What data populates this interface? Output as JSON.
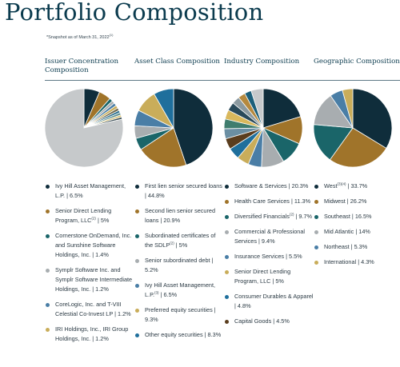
{
  "page": {
    "title": "Portfolio Composition",
    "snapshot": "*Snapshot as of March 31, 2022",
    "snapshot_sup": "(1)"
  },
  "chart_data": [
    {
      "type": "pie",
      "title": "Issuer Concentration Composition",
      "slices": [
        {
          "label": "Ivy Hill Asset Management, L.P.",
          "sup": "",
          "value": 6.5,
          "color": "#0f2d3b"
        },
        {
          "label": "Senior Direct Lending Program, LLC",
          "sup": "(2)",
          "value": 5,
          "color": "#a0742a"
        },
        {
          "label": "Cornerstone OnDemand, Inc. and Sunshine Software Holdings, Inc.",
          "sup": "",
          "value": 1.4,
          "color": "#1a6569"
        },
        {
          "label": "Symplr Software Inc. and Symplr Software Intermediate Holdings, Inc.",
          "sup": "",
          "value": 1.2,
          "color": "#a8adb0"
        },
        {
          "label": "CoreLogic, Inc. and T-VIII Celestial Co-Invest LP",
          "sup": "",
          "value": 1.2,
          "color": "#4a7ea6"
        },
        {
          "label": "IRI Holdings, Inc., IRI Group Holdings, Inc.",
          "sup": "",
          "value": 1.2,
          "color": "#c9ad5a"
        }
      ],
      "unlabeled_slices": [
        {
          "value": 1.1,
          "color": "#6f6a50"
        },
        {
          "value": 1.0,
          "color": "#2b6f8f"
        },
        {
          "value": 1.0,
          "color": "#5b8d8c"
        },
        {
          "value": 0.9,
          "color": "#d8c27a"
        },
        {
          "value": 0.9,
          "color": "#3d4f57"
        },
        {
          "value": 78.6,
          "color": "#c6c9cb"
        }
      ]
    },
    {
      "type": "pie",
      "title": "Asset Class Composition",
      "slices": [
        {
          "label": "First lien senior secured loans",
          "sup": "",
          "value": 44.8,
          "color": "#0f2d3b"
        },
        {
          "label": "Second lien senior secured loans",
          "sup": "",
          "value": 20.9,
          "color": "#a0742a"
        },
        {
          "label": "Subordinated certificates of the SDLP",
          "sup": "(2)",
          "value": 5,
          "color": "#1a6569"
        },
        {
          "label": "Senior subordinated debt",
          "sup": "",
          "value": 5.2,
          "color": "#a8adb0"
        },
        {
          "label": "Ivy Hill Asset Management, L.P.",
          "sup": "(3)",
          "value": 6.5,
          "color": "#4a7ea6"
        },
        {
          "label": "Preferred equity securities",
          "sup": "",
          "value": 9.3,
          "color": "#c9ad5a"
        },
        {
          "label": "Other equity securities",
          "sup": "",
          "value": 8.3,
          "color": "#1f6f9c"
        }
      ],
      "unlabeled_slices": []
    },
    {
      "type": "pie",
      "title": "Industry Composition",
      "slices": [
        {
          "label": "Software & Services",
          "sup": "",
          "value": 20.3,
          "color": "#0f2d3b"
        },
        {
          "label": "Health Care Services",
          "sup": "",
          "value": 11.3,
          "color": "#a0742a"
        },
        {
          "label": "Diversified Financials",
          "sup": "(2)",
          "value": 9.7,
          "color": "#1a6569"
        },
        {
          "label": "Commercial & Professional Services",
          "sup": "",
          "value": 9.4,
          "color": "#a8adb0"
        },
        {
          "label": "Insurance Services",
          "sup": "",
          "value": 5.5,
          "color": "#4a7ea6"
        },
        {
          "label": "Senior Direct Lending Program, LLC",
          "sup": "",
          "value": 5,
          "color": "#c9ad5a"
        },
        {
          "label": "Consumer Durables & Apparel",
          "sup": "",
          "value": 4.8,
          "color": "#1f6f9c"
        },
        {
          "label": "Capital Goods",
          "sup": "",
          "value": 4.5,
          "color": "#5a3d1e"
        }
      ],
      "unlabeled_slices": [
        {
          "value": 4.2,
          "color": "#6b8fa3"
        },
        {
          "value": 4.0,
          "color": "#3f7d6e"
        },
        {
          "value": 3.8,
          "color": "#d9b85c"
        },
        {
          "value": 3.5,
          "color": "#2a4a5a"
        },
        {
          "value": 3.2,
          "color": "#8c9aa0"
        },
        {
          "value": 3.0,
          "color": "#b5893f"
        },
        {
          "value": 2.8,
          "color": "#1b5f7a"
        },
        {
          "value": 5.0,
          "color": "#c6c9cb"
        }
      ]
    },
    {
      "type": "pie",
      "title": "Geographic Composition",
      "slices": [
        {
          "label": "West",
          "sup": "(3)(4)",
          "value": 33.7,
          "color": "#0f2d3b"
        },
        {
          "label": "Midwest",
          "sup": "",
          "value": 26.2,
          "color": "#a0742a"
        },
        {
          "label": "Southeast",
          "sup": "",
          "value": 16.5,
          "color": "#1a6569"
        },
        {
          "label": "Mid Atlantic",
          "sup": "",
          "value": 14,
          "color": "#a8adb0"
        },
        {
          "label": "Northeast",
          "sup": "",
          "value": 5.3,
          "color": "#4a7ea6"
        },
        {
          "label": "International",
          "sup": "",
          "value": 4.3,
          "color": "#c9ad5a"
        }
      ],
      "unlabeled_slices": []
    }
  ]
}
